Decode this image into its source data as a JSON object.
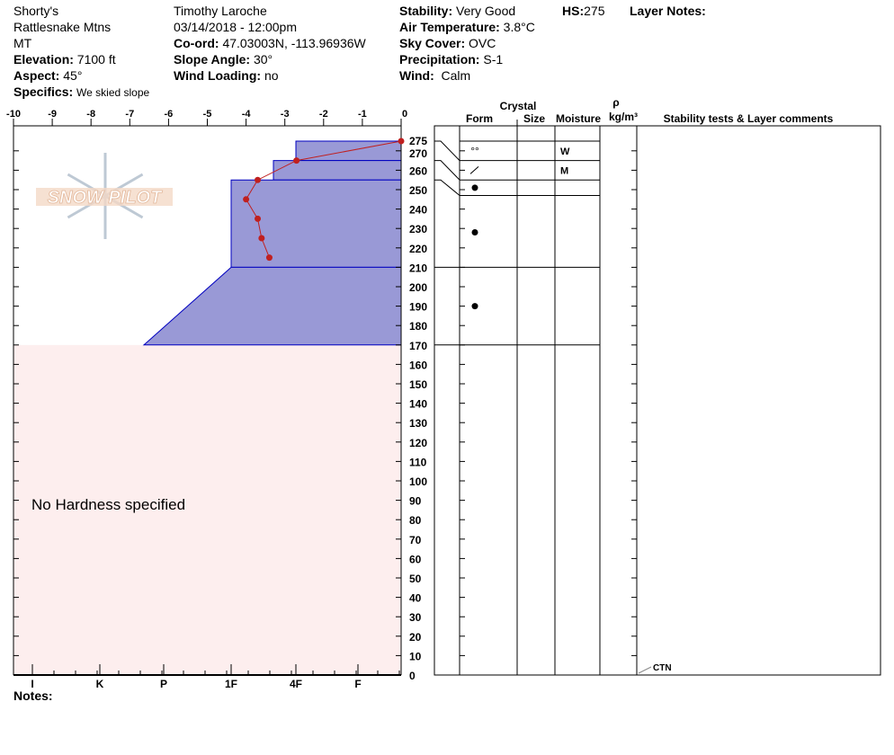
{
  "header": {
    "location": [
      "Shorty's",
      "Rattlesnake Mtns",
      "MT"
    ],
    "elevation": {
      "label": "Elevation:",
      "value": "7100 ft"
    },
    "aspect": {
      "label": "Aspect:",
      "value": "45°"
    },
    "specifics": {
      "label": "Specifics:",
      "value": "We skied slope"
    },
    "observer": "Timothy  Laroche",
    "datetime": "03/14/2018 - 12:00pm",
    "coord": {
      "label": "Co-ord:",
      "value": "47.03003N, -113.96936W"
    },
    "slope_angle": {
      "label": "Slope Angle:",
      "value": "30°"
    },
    "wind_loading": {
      "label": "Wind Loading:",
      "value": "no"
    },
    "stability": {
      "label": "Stability:",
      "value": "Very Good"
    },
    "air_temp": {
      "label": "Air Temperature:",
      "value": "3.8°C"
    },
    "sky_cover": {
      "label": "Sky Cover:",
      "value": "OVC"
    },
    "precipitation": {
      "label": "Precipitation:",
      "value": "S-1"
    },
    "wind": {
      "label": "Wind:",
      "value": "Calm"
    },
    "hs": {
      "label": "HS:",
      "value": "275"
    },
    "layer_notes": {
      "label": "Layer Notes:"
    }
  },
  "logo": {
    "text": "SNOW PILOT"
  },
  "chart_data": {
    "type": "line",
    "temperature_axis": {
      "ticks": [
        -10,
        -9,
        -8,
        -7,
        -6,
        -5,
        -4,
        -3,
        -2,
        -1,
        0
      ],
      "range": [
        -10,
        0
      ]
    },
    "height_axis": {
      "range": [
        0,
        275
      ],
      "ticks": [
        275,
        270,
        260,
        250,
        240,
        230,
        220,
        210,
        200,
        190,
        180,
        170,
        160,
        150,
        140,
        130,
        120,
        110,
        100,
        90,
        80,
        70,
        60,
        50,
        40,
        30,
        20,
        10,
        0
      ]
    },
    "hardness_axis": {
      "ticks": [
        "I",
        "K",
        "P",
        "1F",
        "4F",
        "F"
      ]
    },
    "temperature_profile": {
      "height": [
        275,
        265,
        255,
        245,
        235,
        225,
        215
      ],
      "temperature": [
        0,
        -2.7,
        -3.7,
        -4.0,
        -3.7,
        -3.6,
        -3.4
      ],
      "color": "#c02020"
    },
    "hardness_layers": [
      {
        "top": 275,
        "bottom": 265,
        "hardness_top": "4F",
        "hardness_bottom": "4F"
      },
      {
        "top": 265,
        "bottom": 255,
        "hardness_top": "1F+",
        "hardness_bottom": "1F+"
      },
      {
        "top": 255,
        "bottom": 210,
        "hardness_top": "1F",
        "hardness_bottom": "1F"
      },
      {
        "top": 210,
        "bottom": 170,
        "hardness_top": "1F",
        "hardness_bottom": "P-"
      }
    ],
    "hardness_fill": "#9999d6",
    "no_hardness_fill": "#fdeeee",
    "no_hardness_text": "No Hardness specified"
  },
  "layer_table": {
    "headers": {
      "crystal": "Crystal",
      "form": "Form",
      "size": "Size",
      "moisture": "Moisture",
      "rho": "ρ",
      "density": "kg/m³",
      "stability": "Stability tests & Layer comments"
    },
    "layers": [
      {
        "top": 275,
        "bottom": 265,
        "form": "°°",
        "form_icon": "rounded-grains-icon",
        "moisture": "W"
      },
      {
        "top": 265,
        "bottom": 255,
        "form": "/",
        "form_icon": "decomposing-fragments-icon",
        "moisture": "M"
      },
      {
        "top": 255,
        "bottom": 247,
        "form": "●",
        "form_icon": "melt-forms-icon",
        "moisture": ""
      },
      {
        "top": 247,
        "bottom": 210,
        "form": "●",
        "form_icon": "melt-forms-icon",
        "moisture": ""
      },
      {
        "top": 210,
        "bottom": 170,
        "form": "●",
        "form_icon": "melt-forms-icon",
        "moisture": ""
      }
    ],
    "tests": [
      {
        "label": "CTN",
        "height": 0
      }
    ]
  },
  "notes": {
    "label": "Notes:"
  }
}
